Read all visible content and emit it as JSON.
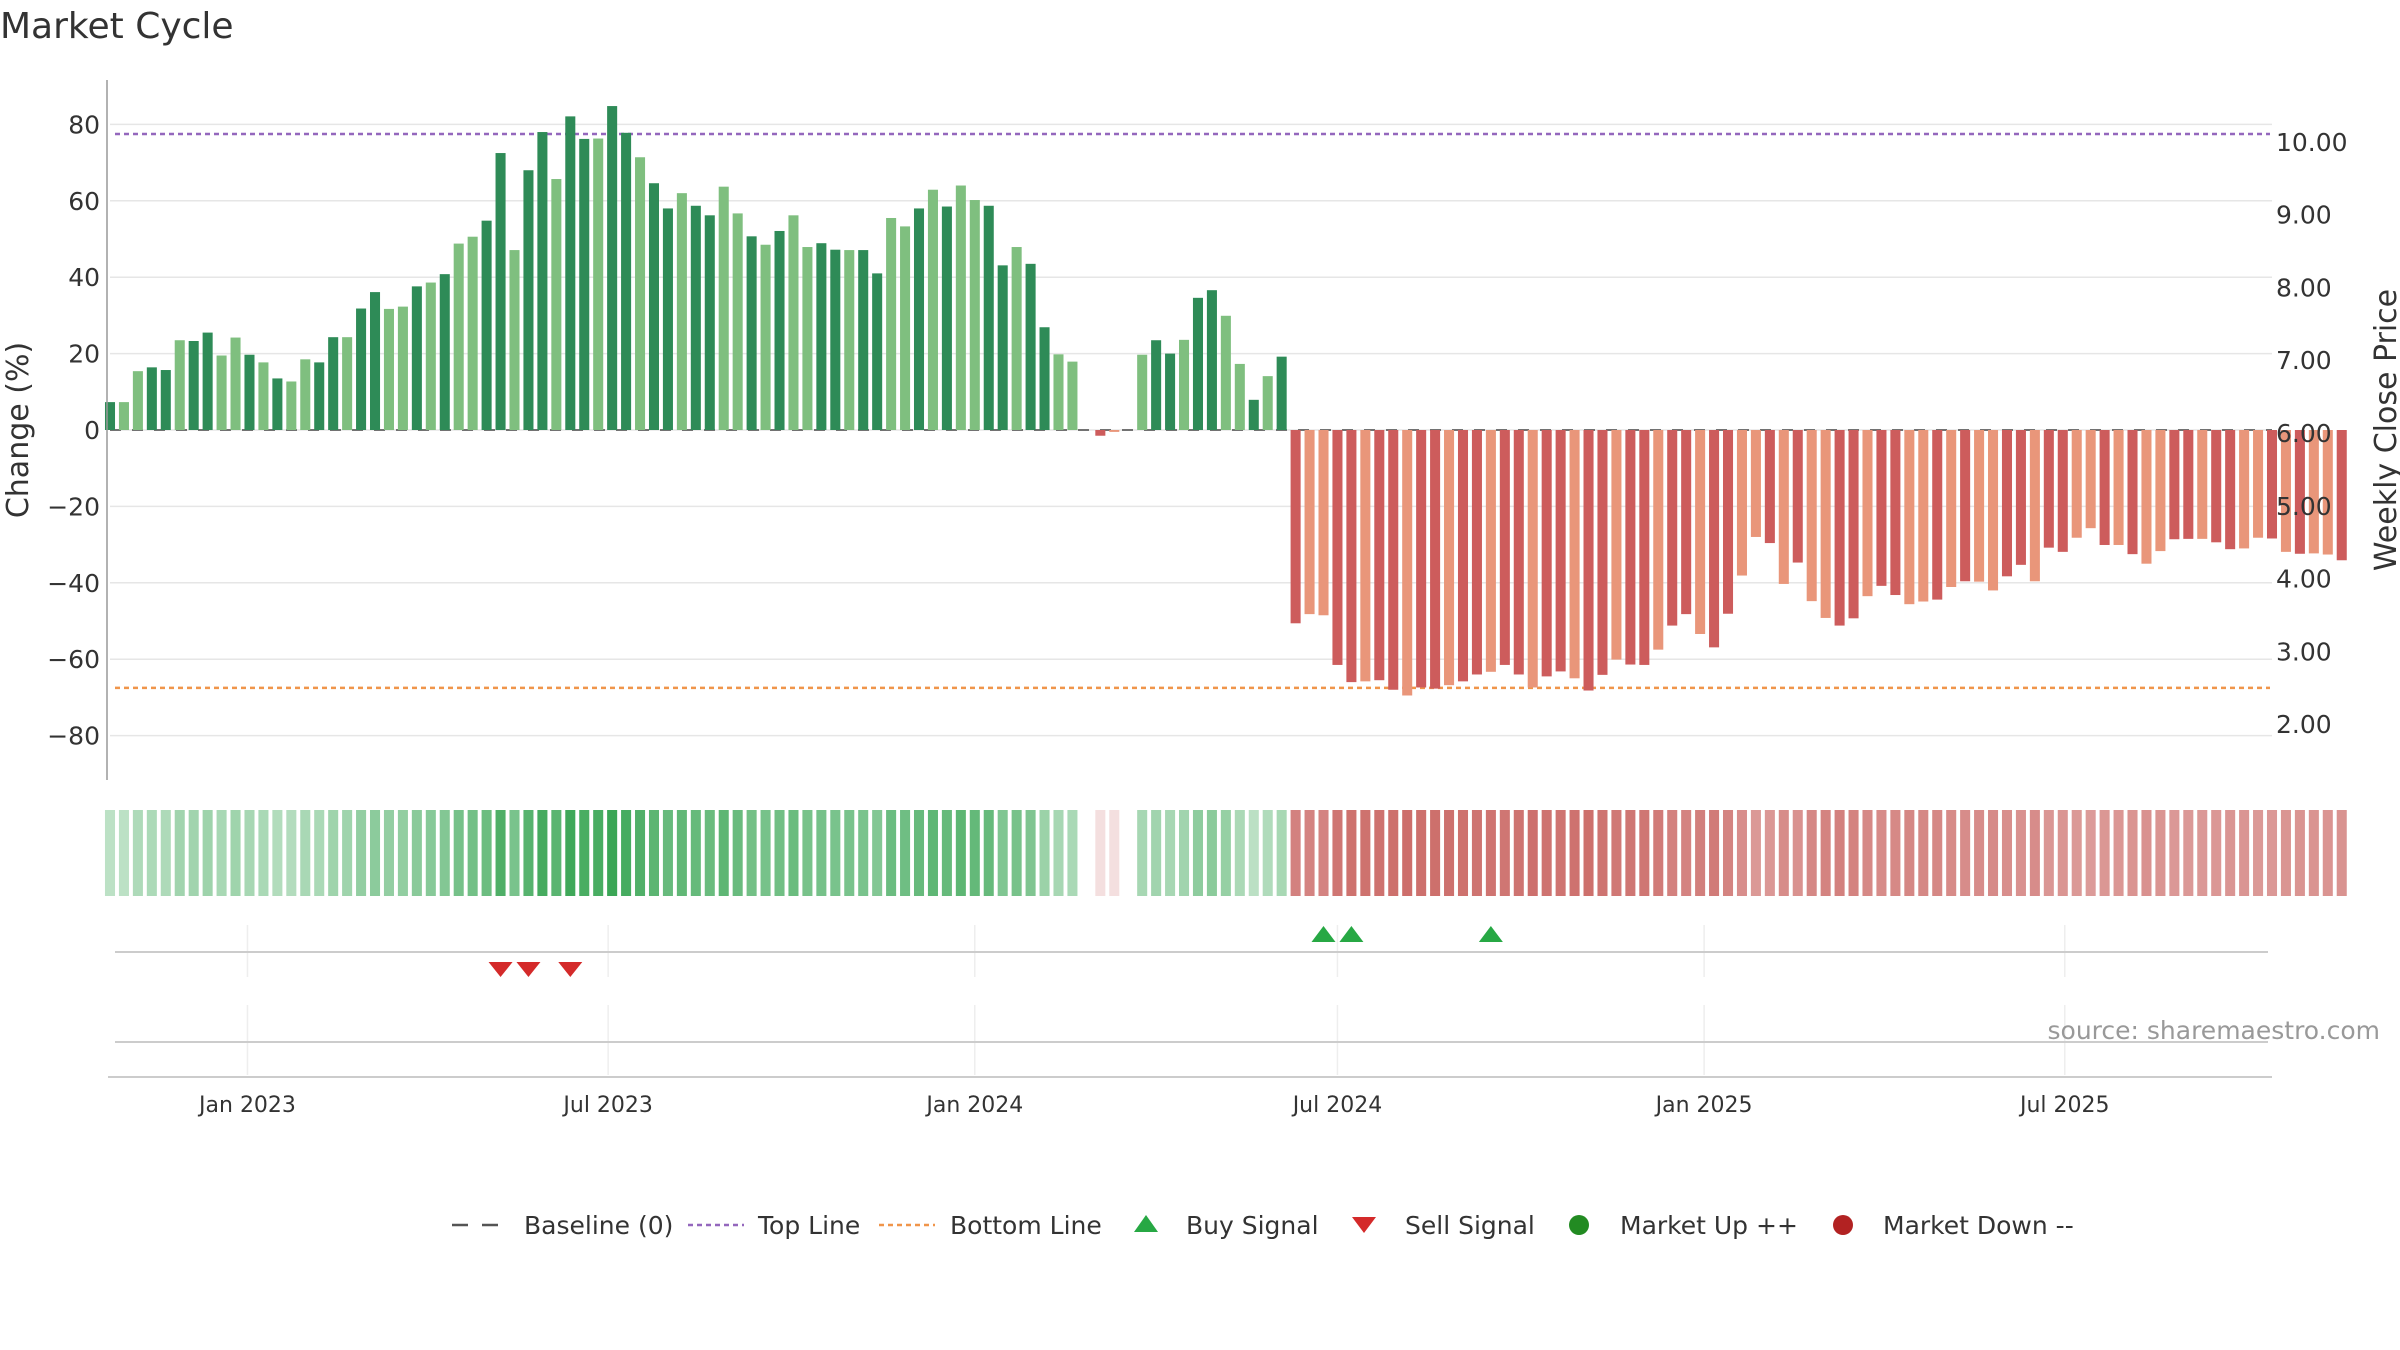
{
  "colors": {
    "up_strong": "#2e8b57",
    "up_light": "#7fbf7f",
    "down_strong": "#cd5c5c",
    "down_light": "#e9967a",
    "top_line": "#9467bd",
    "bottom_line": "#f0954a",
    "baseline": "#555555",
    "buy": "#27a844",
    "sell": "#d42a2a",
    "market_up": "#228b22",
    "market_down": "#b22222"
  },
  "chart_data": {
    "type": "bar",
    "title": "Market Cycle",
    "ylabel_left": "Change (%)",
    "ylabel_right": "Weekly Close Price",
    "ylim": [
      -92,
      92
    ],
    "yticks": [
      80,
      60,
      40,
      20,
      0,
      -20,
      -40,
      -60,
      -80
    ],
    "ytick_labels": [
      "80",
      "60",
      "40",
      "20",
      "0",
      "−20",
      "−40",
      "−60",
      "−80"
    ],
    "right_ylim": [
      1.39,
      10.72
    ],
    "right_yticks": [
      10,
      9,
      8,
      7,
      6,
      5,
      4,
      3,
      2
    ],
    "right_ytick_labels": [
      "10.00",
      "9.00",
      "8.00",
      "7.00",
      "6.00",
      "5.00",
      "4.00",
      "3.00",
      "2.00"
    ],
    "x_start": "2022-10-24",
    "x_end": "2025-10-13",
    "xtick_dates": [
      "2023-01-01",
      "2023-07-01",
      "2024-01-01",
      "2024-07-01",
      "2025-01-01",
      "2025-07-01"
    ],
    "xtick_labels": [
      "Jan 2023",
      "Jul 2023",
      "Jan 2024",
      "Jul 2024",
      "Jan 2025",
      "Jul 2025"
    ],
    "top_line": 77.5,
    "bottom_line": -67.5,
    "baseline": 0,
    "bars": {
      "first_week": "2022-10-24",
      "interval_days": 7,
      "values": [
        7.3,
        7.3,
        15.4,
        16.4,
        15.7,
        23.5,
        23.3,
        25.5,
        19.5,
        24.2,
        19.7,
        17.7,
        13.5,
        12.7,
        18.5,
        17.7,
        24.3,
        24.3,
        31.8,
        36.1,
        31.7,
        32.3,
        37.6,
        38.6,
        40.8,
        48.8,
        50.6,
        54.8,
        72.5,
        47.1,
        68.0,
        78.0,
        65.7,
        82.1,
        76.2,
        76.3,
        84.8,
        77.8,
        71.4,
        64.6,
        58.0,
        62.0,
        58.7,
        56.2,
        63.7,
        56.7,
        50.7,
        48.5,
        52.1,
        56.2,
        47.9,
        48.9,
        47.2,
        47.1,
        47.1,
        41.0,
        55.5,
        53.3,
        58.0,
        62.9,
        58.5,
        64.0,
        60.2,
        58.7,
        43.1,
        47.9,
        43.5,
        26.9,
        19.8,
        17.9,
        0,
        -1.5,
        -0.5,
        0,
        19.7,
        23.5,
        20.0,
        23.6,
        34.6,
        36.6,
        29.9,
        17.3,
        7.9,
        14.1,
        19.2,
        -50.6,
        -48.2,
        -48.5,
        -61.5,
        -66.0,
        -65.8,
        -65.5,
        -68.0,
        -69.5,
        -67.4,
        -67.7,
        -66.8,
        -65.8,
        -64.0,
        -63.3,
        -61.5,
        -64.0,
        -67.4,
        -64.5,
        -63.2,
        -65.0,
        -68.2,
        -64.1,
        -60.1,
        -61.4,
        -61.5,
        -57.5,
        -51.2,
        -48.2,
        -53.4,
        -56.9,
        -48.1,
        -38.1,
        -28.0,
        -29.6,
        -40.3,
        -34.7,
        -44.8,
        -49.2,
        -51.2,
        -49.3,
        -43.5,
        -40.8,
        -43.2,
        -45.6,
        -44.9,
        -44.4,
        -41.1,
        -39.6,
        -39.7,
        -42.0,
        -38.3,
        -35.3,
        -39.6,
        -30.8,
        -31.9,
        -28.2,
        -25.7,
        -30.1,
        -30.1,
        -32.5,
        -35.0,
        -31.7,
        -28.6,
        -28.5,
        -28.5,
        -29.4,
        -31.2,
        -31.0,
        -28.2,
        -28.4,
        -31.9,
        -32.4,
        -32.3,
        -32.6,
        -34.1
      ]
    },
    "shading_strip_note": "",
    "buy_signal_dates": [
      "2024-06-24",
      "2024-07-08",
      "2024-09-16"
    ],
    "sell_signal_dates": [
      "2023-05-08",
      "2023-05-22",
      "2023-06-12"
    ]
  },
  "source": "source: sharemaestro.com",
  "legend": [
    {
      "label": "Baseline (0)",
      "icon": "dashed-line-icon"
    },
    {
      "label": "Top Line",
      "icon": "dotted-line-icon"
    },
    {
      "label": "Bottom Line",
      "icon": "dotted-line-icon"
    },
    {
      "label": "Buy Signal",
      "icon": "up-triangle-icon"
    },
    {
      "label": "Sell Signal",
      "icon": "down-triangle-icon"
    },
    {
      "label": "Market Up ++",
      "icon": "dot-icon"
    },
    {
      "label": "Market Down --",
      "icon": "dot-icon"
    }
  ]
}
